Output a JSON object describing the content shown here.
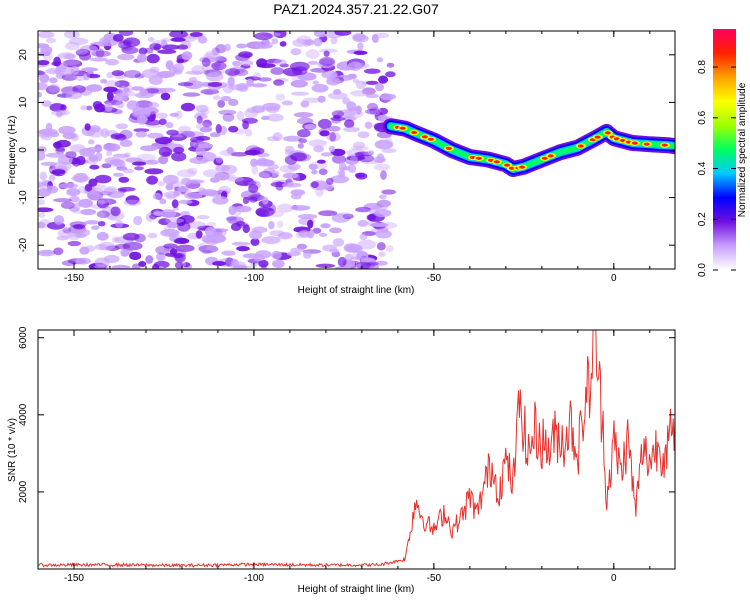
{
  "figure": {
    "title": "PAZ1.2024.357.21.22.G07"
  },
  "chart_data": [
    {
      "type": "heatmap",
      "title": "PAZ1.2024.357.21.22.G07",
      "xlabel": "Height of straight line (km)",
      "ylabel": "Frequency (Hz)",
      "xlim": [
        -160,
        17
      ],
      "ylim": [
        -25,
        25
      ],
      "x_ticks": [
        "-150",
        "-100",
        "-50",
        "0"
      ],
      "y_ticks": [
        "20",
        "10",
        "0",
        "-10",
        "-20"
      ],
      "noise_region_x": [
        -160,
        -62
      ],
      "signal_track": {
        "x": [
          -62,
          -58,
          -55,
          -50,
          -45,
          -40,
          -35,
          -30,
          -28,
          -25,
          -20,
          -15,
          -10,
          -5,
          -2,
          0,
          5,
          10,
          15,
          17
        ],
        "frequency_hz": [
          5,
          4.5,
          3.5,
          2,
          0,
          -1.5,
          -2,
          -3,
          -4,
          -3.5,
          -2,
          -0.5,
          0.5,
          2.5,
          3.8,
          2.5,
          1.5,
          1.2,
          1.0,
          0.8
        ]
      },
      "colorbar": {
        "label": "Normalized spectral amplitude",
        "range": [
          0.0,
          0.95
        ],
        "ticks": [
          "0.0",
          "0.2",
          "0.4",
          "0.6",
          "0.8"
        ],
        "colors": [
          "#ffffff",
          "#c8a0ff",
          "#7010e0",
          "#0000ff",
          "#00c8ff",
          "#00ff60",
          "#a0ff00",
          "#ffff00",
          "#ffa000",
          "#ff2000",
          "#ff0060"
        ]
      }
    },
    {
      "type": "line",
      "xlabel": "Height of straight line (km)",
      "ylabel": "SNR (10 * v/v)",
      "xlim": [
        -160,
        17
      ],
      "ylim": [
        0,
        6200
      ],
      "x_ticks": [
        "-150",
        "-100",
        "-50",
        "0"
      ],
      "y_ticks": [
        "2000",
        "4000",
        "6000"
      ],
      "line_color": "#e8312c",
      "series": [
        {
          "x": [
            -160,
            -140,
            -120,
            -100,
            -80,
            -65,
            -58,
            -55,
            -53,
            -50,
            -47,
            -45,
            -42,
            -40,
            -38,
            -36,
            -34,
            -32,
            -30,
            -28,
            -26,
            -24,
            -22,
            -20,
            -18,
            -16,
            -14,
            -12,
            -10,
            -8,
            -6,
            -5,
            -4,
            -3,
            -2,
            0,
            2,
            4,
            6,
            8,
            10,
            12,
            14,
            16,
            17
          ],
          "values": [
            100,
            110,
            90,
            120,
            100,
            110,
            250,
            1800,
            1300,
            1000,
            1500,
            1000,
            1400,
            1900,
            1400,
            2200,
            2700,
            2000,
            2800,
            2200,
            4500,
            2900,
            3600,
            3300,
            3100,
            3500,
            3300,
            3800,
            3000,
            4300,
            5200,
            6000,
            4600,
            3800,
            1800,
            3300,
            2500,
            3400,
            1500,
            3100,
            2800,
            3200,
            3000,
            3500,
            3400
          ]
        }
      ]
    }
  ]
}
